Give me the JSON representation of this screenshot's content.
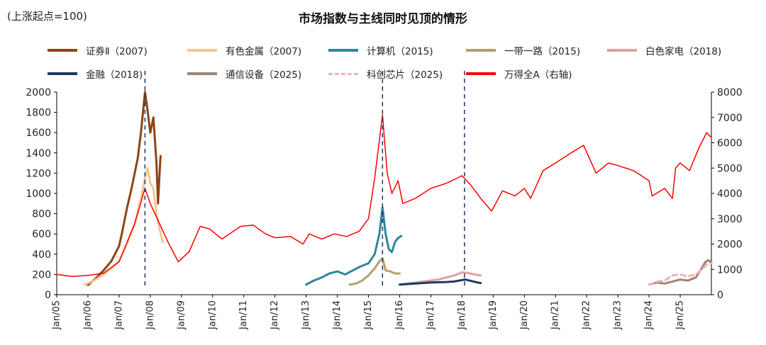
{
  "chart_data": {
    "type": "line",
    "title": "市场指数与主线同时见顶的情形",
    "unit_note": "(上涨起点=100)",
    "x_labels": [
      "Jan/05",
      "Jan/06",
      "Jan/07",
      "Jan/08",
      "Jan/09",
      "Jan/10",
      "Jan/11",
      "Jan/12",
      "Jan/13",
      "Jan/14",
      "Jan/15",
      "Jan/16",
      "Jan/17",
      "Jan/18",
      "Jan/19",
      "Jan/20",
      "Jan/21",
      "Jan/22",
      "Jan/23",
      "Jan/24",
      "Jan/25"
    ],
    "y_left": {
      "min": 0,
      "max": 2000,
      "ticks": [
        "0",
        "200",
        "400",
        "600",
        "800",
        "1000",
        "1200",
        "1400",
        "1600",
        "1800",
        "2000"
      ]
    },
    "y_right": {
      "min": 0,
      "max": 8000,
      "ticks": [
        "0",
        "1000",
        "2000",
        "3000",
        "4000",
        "5000",
        "6000",
        "7000",
        "8000"
      ]
    },
    "peak_markers": [
      2007.83,
      2015.45,
      2018.08
    ],
    "series": [
      {
        "name": "证券Ⅱ（2007)",
        "color": "#8B4513",
        "axis": "left",
        "width": 3,
        "dash": "",
        "points": [
          [
            2006.0,
            95
          ],
          [
            2006.25,
            160
          ],
          [
            2006.5,
            240
          ],
          [
            2006.75,
            330
          ],
          [
            2007.0,
            480
          ],
          [
            2007.1,
            620
          ],
          [
            2007.25,
            850
          ],
          [
            2007.4,
            1050
          ],
          [
            2007.5,
            1200
          ],
          [
            2007.6,
            1350
          ],
          [
            2007.7,
            1600
          ],
          [
            2007.83,
            2000
          ],
          [
            2007.9,
            1850
          ],
          [
            2008.0,
            1600
          ],
          [
            2008.1,
            1750
          ],
          [
            2008.2,
            1300
          ],
          [
            2008.25,
            900
          ],
          [
            2008.3,
            1200
          ],
          [
            2008.33,
            1370
          ]
        ]
      },
      {
        "name": "有色金属（2007)",
        "color": "#F7C48F",
        "axis": "left",
        "width": 3,
        "dash": "",
        "points": [
          [
            2005.9,
            100
          ],
          [
            2006.2,
            140
          ],
          [
            2006.5,
            200
          ],
          [
            2006.75,
            260
          ],
          [
            2007.0,
            330
          ],
          [
            2007.25,
            500
          ],
          [
            2007.5,
            700
          ],
          [
            2007.7,
            950
          ],
          [
            2007.83,
            1150
          ],
          [
            2007.92,
            1250
          ],
          [
            2008.0,
            1100
          ],
          [
            2008.1,
            1050
          ],
          [
            2008.2,
            800
          ],
          [
            2008.3,
            650
          ],
          [
            2008.4,
            520
          ]
        ]
      },
      {
        "name": "计算机（2015)",
        "color": "#31859C",
        "axis": "left",
        "width": 3,
        "dash": "",
        "points": [
          [
            2013.0,
            100
          ],
          [
            2013.25,
            140
          ],
          [
            2013.5,
            170
          ],
          [
            2013.75,
            210
          ],
          [
            2014.0,
            230
          ],
          [
            2014.25,
            200
          ],
          [
            2014.5,
            240
          ],
          [
            2014.75,
            280
          ],
          [
            2015.0,
            310
          ],
          [
            2015.2,
            400
          ],
          [
            2015.35,
            600
          ],
          [
            2015.45,
            860
          ],
          [
            2015.55,
            600
          ],
          [
            2015.65,
            450
          ],
          [
            2015.75,
            420
          ],
          [
            2015.85,
            520
          ],
          [
            2015.95,
            560
          ],
          [
            2016.05,
            580
          ]
        ]
      },
      {
        "name": "一带一路（2015)",
        "color": "#B5A069",
        "axis": "left",
        "width": 3,
        "dash": "",
        "points": [
          [
            2014.4,
            100
          ],
          [
            2014.6,
            110
          ],
          [
            2014.8,
            140
          ],
          [
            2015.0,
            190
          ],
          [
            2015.2,
            260
          ],
          [
            2015.35,
            330
          ],
          [
            2015.45,
            360
          ],
          [
            2015.55,
            240
          ],
          [
            2015.7,
            230
          ],
          [
            2015.85,
            210
          ],
          [
            2016.0,
            210
          ]
        ]
      },
      {
        "name": "白色家电（2018)",
        "color": "#E0A0A0",
        "axis": "left",
        "width": 3,
        "dash": "",
        "points": [
          [
            2016.0,
            100
          ],
          [
            2016.5,
            120
          ],
          [
            2017.0,
            140
          ],
          [
            2017.25,
            150
          ],
          [
            2017.5,
            170
          ],
          [
            2017.75,
            190
          ],
          [
            2018.0,
            220
          ],
          [
            2018.2,
            215
          ],
          [
            2018.4,
            200
          ],
          [
            2018.6,
            190
          ]
        ]
      },
      {
        "name": "金融（2018)",
        "color": "#1F3864",
        "axis": "left",
        "width": 3,
        "dash": "",
        "points": [
          [
            2016.0,
            100
          ],
          [
            2016.5,
            110
          ],
          [
            2017.0,
            120
          ],
          [
            2017.5,
            125
          ],
          [
            2017.75,
            130
          ],
          [
            2018.0,
            145
          ],
          [
            2018.1,
            150
          ],
          [
            2018.3,
            135
          ],
          [
            2018.5,
            120
          ],
          [
            2018.6,
            115
          ]
        ]
      },
      {
        "name": "通信设备（2025)",
        "color": "#9B8574",
        "axis": "left",
        "width": 3,
        "dash": "",
        "points": [
          [
            2024.0,
            100
          ],
          [
            2024.25,
            120
          ],
          [
            2024.5,
            110
          ],
          [
            2024.75,
            130
          ],
          [
            2025.0,
            150
          ],
          [
            2025.25,
            140
          ],
          [
            2025.5,
            170
          ],
          [
            2025.65,
            240
          ],
          [
            2025.8,
            320
          ],
          [
            2025.9,
            340
          ],
          [
            2026.0,
            320
          ]
        ]
      },
      {
        "name": "科创芯片（2025)",
        "color": "#F0B3B3",
        "axis": "left",
        "width": 3,
        "dash": "7,5",
        "points": [
          [
            2024.0,
            100
          ],
          [
            2024.25,
            130
          ],
          [
            2024.5,
            140
          ],
          [
            2024.75,
            190
          ],
          [
            2025.0,
            200
          ],
          [
            2025.25,
            180
          ],
          [
            2025.5,
            200
          ],
          [
            2025.7,
            250
          ],
          [
            2025.85,
            300
          ],
          [
            2026.0,
            310
          ]
        ]
      },
      {
        "name": "万得全A（右轴)",
        "color": "#FF0000",
        "axis": "right",
        "width": 1.5,
        "dash": "",
        "points": [
          [
            2005.0,
            800
          ],
          [
            2005.5,
            720
          ],
          [
            2006.0,
            760
          ],
          [
            2006.5,
            850
          ],
          [
            2007.0,
            1300
          ],
          [
            2007.5,
            2800
          ],
          [
            2007.83,
            4200
          ],
          [
            2008.0,
            3600
          ],
          [
            2008.3,
            2800
          ],
          [
            2008.6,
            2000
          ],
          [
            2008.9,
            1300
          ],
          [
            2009.25,
            1700
          ],
          [
            2009.6,
            2700
          ],
          [
            2009.9,
            2600
          ],
          [
            2010.3,
            2200
          ],
          [
            2010.9,
            2700
          ],
          [
            2011.3,
            2750
          ],
          [
            2011.7,
            2400
          ],
          [
            2012.0,
            2250
          ],
          [
            2012.5,
            2300
          ],
          [
            2012.9,
            2000
          ],
          [
            2013.1,
            2400
          ],
          [
            2013.5,
            2200
          ],
          [
            2013.9,
            2400
          ],
          [
            2014.3,
            2300
          ],
          [
            2014.7,
            2500
          ],
          [
            2015.0,
            3000
          ],
          [
            2015.2,
            4600
          ],
          [
            2015.45,
            7100
          ],
          [
            2015.6,
            4800
          ],
          [
            2015.75,
            4000
          ],
          [
            2015.95,
            4500
          ],
          [
            2016.1,
            3600
          ],
          [
            2016.5,
            3800
          ],
          [
            2017.0,
            4200
          ],
          [
            2017.5,
            4400
          ],
          [
            2018.0,
            4700
          ],
          [
            2018.3,
            4300
          ],
          [
            2018.6,
            3800
          ],
          [
            2018.95,
            3300
          ],
          [
            2019.3,
            4100
          ],
          [
            2019.7,
            3900
          ],
          [
            2020.0,
            4200
          ],
          [
            2020.2,
            3800
          ],
          [
            2020.6,
            4900
          ],
          [
            2021.0,
            5200
          ],
          [
            2021.5,
            5600
          ],
          [
            2021.9,
            5900
          ],
          [
            2022.3,
            4800
          ],
          [
            2022.7,
            5200
          ],
          [
            2023.0,
            5100
          ],
          [
            2023.5,
            4900
          ],
          [
            2024.0,
            4500
          ],
          [
            2024.1,
            3900
          ],
          [
            2024.5,
            4200
          ],
          [
            2024.75,
            3800
          ],
          [
            2024.85,
            5000
          ],
          [
            2025.0,
            5200
          ],
          [
            2025.3,
            4900
          ],
          [
            2025.6,
            5800
          ],
          [
            2025.85,
            6400
          ],
          [
            2026.0,
            6200
          ]
        ]
      }
    ]
  }
}
